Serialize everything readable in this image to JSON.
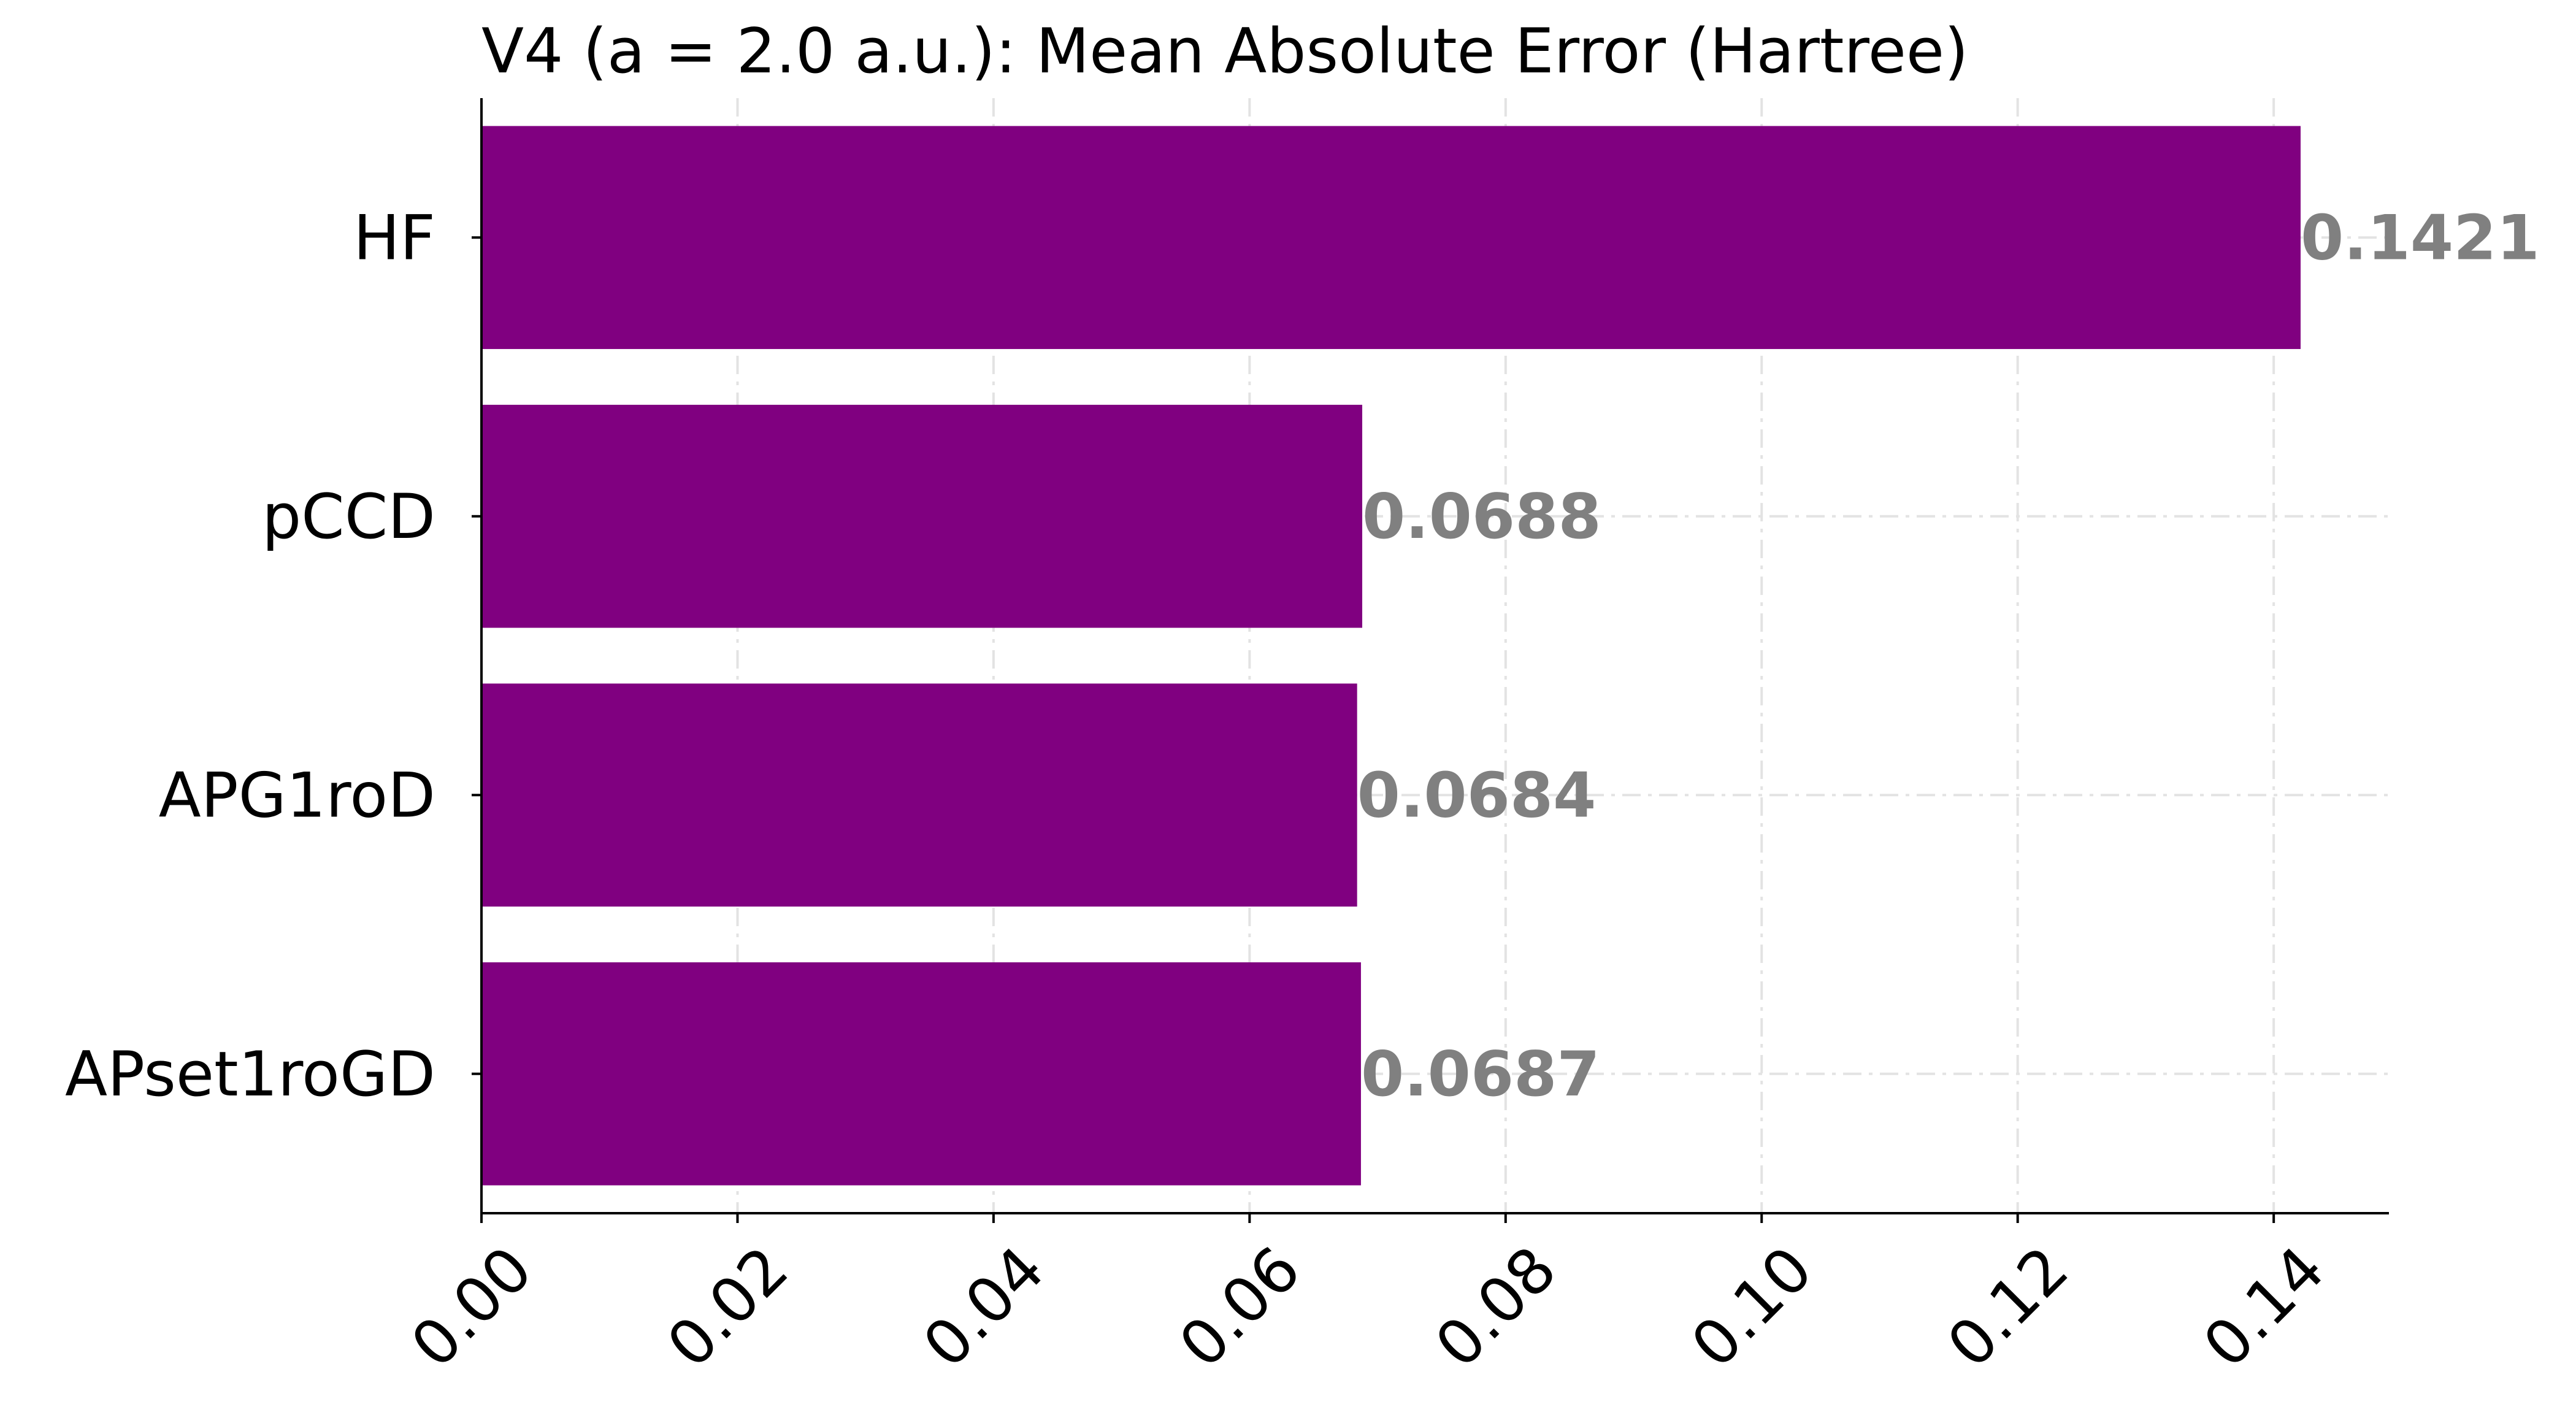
{
  "chart_data": {
    "type": "bar",
    "orientation": "horizontal",
    "title": "V4 (a = 2.0 a.u.): Mean Absolute Error (Hartree)",
    "xlabel": "",
    "ylabel": "",
    "categories": [
      "HF",
      "pCCD",
      "APG1roD",
      "APset1roGD"
    ],
    "values": [
      0.1421,
      0.0688,
      0.0684,
      0.0687
    ],
    "value_labels": [
      "0.1421",
      "0.0688",
      "0.0684",
      "0.0687"
    ],
    "xlim": [
      0,
      0.149
    ],
    "xticks": [
      0.0,
      0.02,
      0.04,
      0.06,
      0.08,
      0.1,
      0.12,
      0.14
    ],
    "xtick_labels": [
      "0.00",
      "0.02",
      "0.04",
      "0.06",
      "0.08",
      "0.10",
      "0.12",
      "0.14"
    ],
    "grid": true,
    "legend": "none",
    "colors": {
      "bar": "#800080",
      "value_label": "#808080",
      "grid": "#e3e3e3"
    }
  }
}
